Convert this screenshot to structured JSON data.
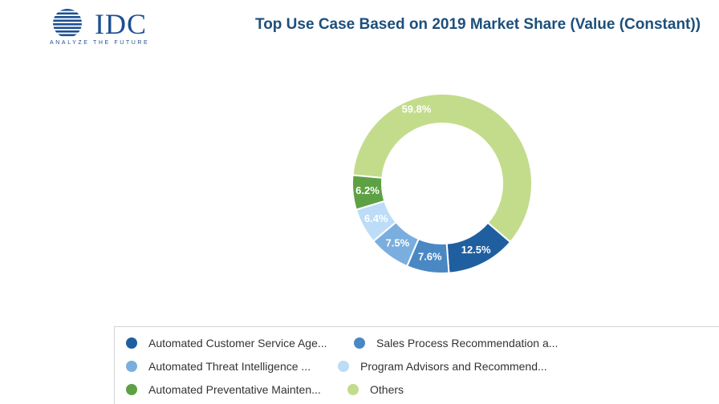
{
  "header": {
    "logo_text": "IDC",
    "logo_tagline": "ANALYZE THE FUTURE",
    "title": "Top Use Case Based on 2019 Market Share (Value (Constant))"
  },
  "colors": {
    "logo": "#1d4f91",
    "title": "#1d4f7c"
  },
  "chart_data": {
    "type": "pie",
    "title": "Top Use Case Based on 2019 Market Share (Value (Constant))",
    "legend_position": "bottom",
    "slices": [
      {
        "name": "Others",
        "value": 59.8,
        "label": "59.8%",
        "color": "#c3dc8c"
      },
      {
        "name": "Automated Customer Service Age...",
        "value": 12.5,
        "label": "12.5%",
        "color": "#1f5fa0"
      },
      {
        "name": "Sales Process Recommendation a...",
        "value": 7.6,
        "label": "7.6%",
        "color": "#4a88c4"
      },
      {
        "name": "Automated Threat Intelligence ...",
        "value": 7.5,
        "label": "7.5%",
        "color": "#7aaede"
      },
      {
        "name": "Program Advisors and Recommend...",
        "value": 6.4,
        "label": "6.4%",
        "color": "#bcdcf7"
      },
      {
        "name": "Automated Preventative Mainten...",
        "value": 6.2,
        "label": "6.2%",
        "color": "#5ea144"
      }
    ]
  },
  "legend": {
    "items": [
      {
        "label": "Automated Customer Service Age...",
        "color": "#1f5fa0"
      },
      {
        "label": "Sales Process Recommendation a...",
        "color": "#4a88c4"
      },
      {
        "label": "Automated Threat Intelligence ...",
        "color": "#7aaede"
      },
      {
        "label": "Program Advisors and Recommend...",
        "color": "#bcdcf7"
      },
      {
        "label": "Automated Preventative Mainten...",
        "color": "#5ea144"
      },
      {
        "label": "Others",
        "color": "#c3dc8c"
      }
    ]
  }
}
